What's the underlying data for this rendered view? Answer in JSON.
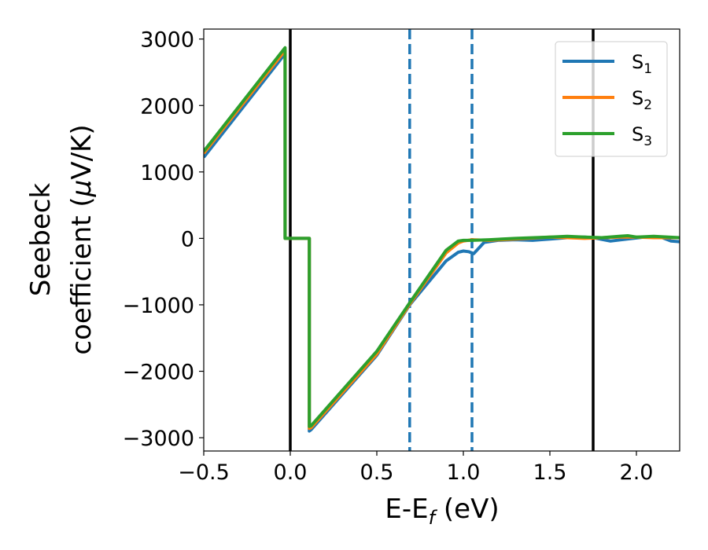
{
  "chart_data": {
    "type": "line",
    "title": "",
    "xlabel": {
      "main": "E-E",
      "sub": "f",
      "unit": " (eV)"
    },
    "ylabel": {
      "line1": "Seebeck",
      "line2_pre": "coefficient  (",
      "mu": "μ",
      "line2_post": "V/K)"
    },
    "xlim": [
      -0.5,
      2.25
    ],
    "ylim": [
      -3200,
      3150
    ],
    "xticks": [
      -0.5,
      0.0,
      0.5,
      1.0,
      1.5,
      2.0
    ],
    "xtick_labels": [
      "−0.5",
      "0.0",
      "0.5",
      "1.0",
      "1.5",
      "2.0"
    ],
    "yticks": [
      3000,
      2000,
      1000,
      0,
      -1000,
      -2000,
      -3000
    ],
    "ytick_labels": [
      "3000",
      "2000",
      "1000",
      "0",
      "−1000",
      "−2000",
      "−3000"
    ],
    "grid": false,
    "legend_position": "top-right",
    "vlines": [
      {
        "x": 0.0,
        "style": "solid",
        "color": "#000000"
      },
      {
        "x": 1.75,
        "style": "solid",
        "color": "#000000"
      },
      {
        "x": 0.69,
        "style": "dashed",
        "color": "#1f77b4"
      },
      {
        "x": 1.05,
        "style": "dashed",
        "color": "#1f77b4"
      }
    ],
    "series": [
      {
        "name": "S",
        "sub": "1",
        "color": "#1f77b4",
        "x": [
          -0.5,
          -0.03,
          -0.03,
          0.11,
          0.11,
          0.12,
          0.5,
          0.69,
          0.9,
          0.97,
          1.0,
          1.03,
          1.06,
          1.12,
          1.2,
          1.3,
          1.4,
          1.5,
          1.6,
          1.7,
          1.75,
          1.85,
          1.95,
          2.05,
          2.15,
          2.2,
          2.25
        ],
        "y": [
          1220,
          2780,
          0,
          0,
          -2900,
          -2880,
          -1760,
          -1000,
          -340,
          -210,
          -190,
          -200,
          -230,
          -60,
          -30,
          -20,
          -30,
          -10,
          10,
          20,
          10,
          -40,
          -10,
          20,
          10,
          -40,
          -50
        ]
      },
      {
        "name": "S",
        "sub": "2",
        "color": "#ff7f0e",
        "x": [
          -0.5,
          -0.03,
          -0.03,
          0.11,
          0.11,
          0.12,
          0.5,
          0.69,
          0.9,
          0.97,
          1.0,
          1.05,
          1.15,
          1.3,
          1.5,
          1.6,
          1.7,
          1.8,
          1.9,
          2.0,
          2.1,
          2.25
        ],
        "y": [
          1280,
          2830,
          0,
          0,
          -2860,
          -2850,
          -1740,
          -990,
          -220,
          -70,
          -40,
          -20,
          -30,
          -10,
          20,
          10,
          0,
          10,
          20,
          20,
          10,
          10
        ]
      },
      {
        "name": "S",
        "sub": "3",
        "color": "#2ca02c",
        "x": [
          -0.5,
          -0.03,
          -0.03,
          0.11,
          0.11,
          0.12,
          0.5,
          0.69,
          0.9,
          0.97,
          1.0,
          1.05,
          1.15,
          1.3,
          1.5,
          1.6,
          1.7,
          1.8,
          1.9,
          1.95,
          2.0,
          2.1,
          2.25
        ],
        "y": [
          1310,
          2870,
          0,
          0,
          -2830,
          -2820,
          -1700,
          -970,
          -180,
          -40,
          -30,
          -30,
          -20,
          0,
          20,
          30,
          20,
          10,
          30,
          40,
          20,
          30,
          10
        ]
      }
    ]
  }
}
